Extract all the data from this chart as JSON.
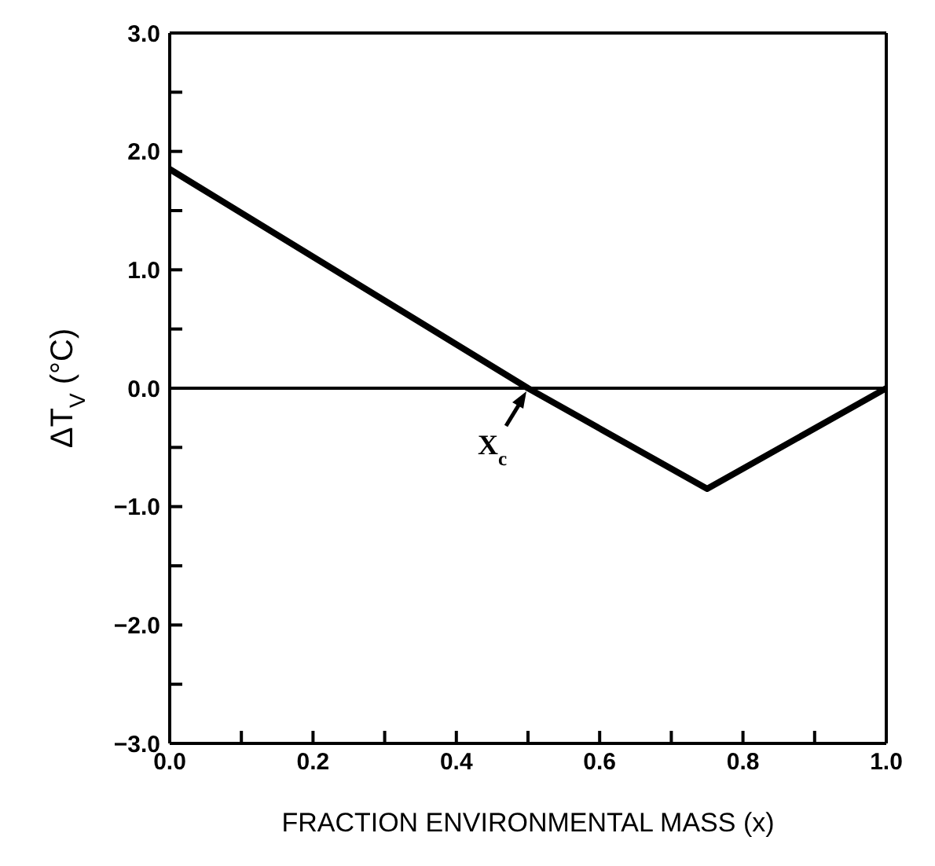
{
  "chart_data": {
    "type": "line",
    "xlabel": "FRACTION ENVIRONMENTAL MASS (x)",
    "ylabel": "ΔT$_{V}$ (°C)",
    "x": [
      0,
      0.5,
      0.75,
      1.0
    ],
    "series": [
      {
        "color": "#000000",
        "values": [
          1.85,
          0,
          -0.85,
          0
        ]
      }
    ],
    "xlim": [
      0,
      1
    ],
    "ylim": [
      -3,
      3
    ],
    "xticks": [
      {
        "value": 0,
        "label": "0.0"
      },
      {
        "value": 0.1,
        "label": null
      },
      {
        "value": 0.2,
        "label": "0.2"
      },
      {
        "value": 0.3,
        "label": null
      },
      {
        "value": 0.4,
        "label": "0.4"
      },
      {
        "value": 0.5,
        "label": null
      },
      {
        "value": 0.6,
        "label": "0.6"
      },
      {
        "value": 0.7,
        "label": null
      },
      {
        "value": 0.8,
        "label": "0.8"
      },
      {
        "value": 0.9,
        "label": null
      },
      {
        "value": 1,
        "label": "1.0"
      }
    ],
    "yticks": [
      {
        "value": -3,
        "label": "−3.0"
      },
      {
        "value": -2.5,
        "label": null
      },
      {
        "value": -2,
        "label": "−2.0"
      },
      {
        "value": -1.5,
        "label": null
      },
      {
        "value": -1,
        "label": "−1.0"
      },
      {
        "value": -0.5,
        "label": null
      },
      {
        "value": 0,
        "label": "0.0"
      },
      {
        "value": 0.5,
        "label": null
      },
      {
        "value": 1,
        "label": "1.0"
      },
      {
        "value": 1.5,
        "label": null
      },
      {
        "value": 2,
        "label": "2.0"
      },
      {
        "value": 2.5,
        "label": null
      },
      {
        "value": 3,
        "label": "3.0"
      }
    ],
    "ref_lines": [
      {
        "axis": "y",
        "value": 0,
        "color": "#000000"
      }
    ],
    "annotations": [
      {
        "text": "X$_{c}$",
        "x": 0.5,
        "y": 0
      }
    ],
    "grid": false,
    "legend": false,
    "marker": "none",
    "line_style": "solid"
  }
}
